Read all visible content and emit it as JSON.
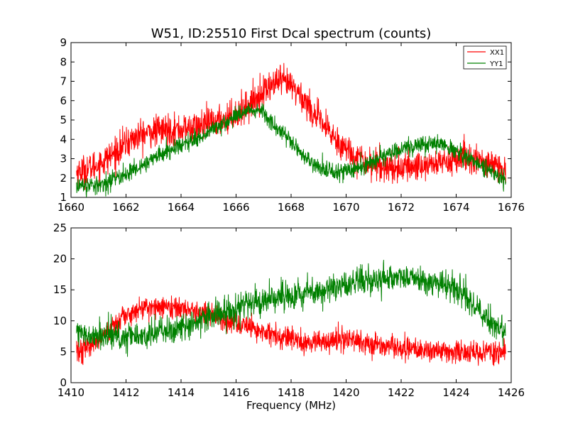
{
  "chart_data": [
    {
      "type": "line",
      "title": "W51, ID:25510 First Dcal spectrum (counts)",
      "xlabel": "",
      "ylabel": "",
      "xlim": [
        1660,
        1676
      ],
      "ylim": [
        1,
        9
      ],
      "xticks": [
        1660,
        1662,
        1664,
        1666,
        1668,
        1670,
        1672,
        1674,
        1676
      ],
      "yticks": [
        1,
        2,
        3,
        4,
        5,
        6,
        7,
        8,
        9
      ],
      "grid": false,
      "legend": "top-right",
      "series": [
        {
          "name": "XX1",
          "color": "#ff0000",
          "noise": 0.4,
          "x": [
            1660.2,
            1660.5,
            1661.0,
            1661.5,
            1662.0,
            1662.5,
            1663.0,
            1663.5,
            1664.0,
            1664.5,
            1665.0,
            1665.5,
            1666.0,
            1666.5,
            1667.0,
            1667.5,
            1668.0,
            1668.5,
            1669.0,
            1669.5,
            1670.0,
            1670.5,
            1671.0,
            1671.5,
            1672.0,
            1672.5,
            1673.0,
            1673.5,
            1674.0,
            1674.5,
            1675.0,
            1675.5,
            1675.8
          ],
          "values": [
            2.3,
            2.4,
            2.7,
            3.2,
            3.8,
            4.2,
            4.4,
            4.5,
            4.5,
            4.6,
            4.8,
            5.0,
            5.3,
            5.8,
            6.5,
            7.0,
            6.8,
            6.0,
            5.0,
            4.2,
            3.5,
            3.0,
            2.7,
            2.6,
            2.5,
            2.6,
            2.7,
            2.8,
            3.0,
            3.0,
            2.8,
            2.5,
            2.3
          ]
        },
        {
          "name": "YY1",
          "color": "#008000",
          "noise": 0.22,
          "x": [
            1660.2,
            1660.5,
            1661.0,
            1661.5,
            1662.0,
            1662.5,
            1663.0,
            1663.5,
            1664.0,
            1664.5,
            1665.0,
            1665.5,
            1666.0,
            1666.5,
            1667.0,
            1667.5,
            1668.0,
            1668.5,
            1669.0,
            1669.5,
            1670.0,
            1670.5,
            1671.0,
            1671.5,
            1672.0,
            1672.5,
            1673.0,
            1673.5,
            1674.0,
            1674.5,
            1675.0,
            1675.5,
            1675.8
          ],
          "values": [
            1.7,
            1.6,
            1.6,
            1.9,
            2.2,
            2.6,
            3.0,
            3.4,
            3.7,
            4.0,
            4.4,
            4.8,
            5.2,
            5.6,
            5.4,
            4.6,
            3.8,
            3.1,
            2.6,
            2.3,
            2.3,
            2.6,
            2.9,
            3.2,
            3.5,
            3.7,
            3.8,
            3.7,
            3.4,
            3.0,
            2.6,
            2.1,
            1.8
          ]
        }
      ]
    },
    {
      "type": "line",
      "title": "",
      "xlabel": "Frequency (MHz)",
      "ylabel": "",
      "xlim": [
        1410,
        1426
      ],
      "ylim": [
        0,
        25
      ],
      "xticks": [
        1410,
        1412,
        1414,
        1416,
        1418,
        1420,
        1422,
        1424,
        1426
      ],
      "yticks": [
        0,
        5,
        10,
        15,
        20,
        25
      ],
      "grid": false,
      "legend": "none",
      "series": [
        {
          "color": "#ff0000",
          "noise": 0.9,
          "x": [
            1410.2,
            1410.5,
            1411.0,
            1411.5,
            1412.0,
            1412.5,
            1413.0,
            1413.5,
            1414.0,
            1414.5,
            1415.0,
            1415.5,
            1416.0,
            1416.5,
            1417.0,
            1417.5,
            1418.0,
            1418.5,
            1419.0,
            1419.5,
            1420.0,
            1420.3,
            1420.5,
            1421.0,
            1421.5,
            1422.0,
            1422.5,
            1423.0,
            1423.5,
            1424.0,
            1424.5,
            1425.0,
            1425.8
          ],
          "values": [
            4.8,
            5.5,
            7.0,
            9.0,
            10.8,
            11.8,
            12.3,
            12.2,
            12.0,
            11.5,
            11.0,
            10.2,
            9.5,
            8.8,
            8.0,
            7.4,
            6.9,
            6.5,
            6.6,
            6.8,
            7.0,
            6.8,
            6.5,
            6.3,
            6.0,
            5.7,
            5.4,
            5.3,
            5.2,
            5.1,
            5.0,
            4.9,
            4.8
          ]
        },
        {
          "color": "#008000",
          "noise": 1.1,
          "x": [
            1410.2,
            1410.5,
            1411.0,
            1411.5,
            1412.0,
            1412.5,
            1413.0,
            1413.5,
            1414.0,
            1414.5,
            1415.0,
            1415.5,
            1416.0,
            1416.5,
            1417.0,
            1417.5,
            1418.0,
            1418.5,
            1419.0,
            1419.5,
            1420.0,
            1420.5,
            1421.0,
            1421.5,
            1422.0,
            1422.5,
            1423.0,
            1423.5,
            1424.0,
            1424.5,
            1425.0,
            1425.5,
            1425.8
          ],
          "values": [
            8.0,
            7.6,
            7.3,
            7.3,
            7.4,
            7.6,
            7.9,
            8.4,
            9.0,
            9.8,
            10.6,
            11.4,
            12.2,
            12.9,
            13.4,
            13.8,
            14.0,
            14.3,
            14.8,
            15.3,
            15.9,
            16.4,
            16.8,
            17.0,
            17.1,
            17.0,
            16.7,
            16.0,
            15.0,
            13.0,
            11.0,
            9.0,
            8.0
          ]
        }
      ]
    }
  ]
}
